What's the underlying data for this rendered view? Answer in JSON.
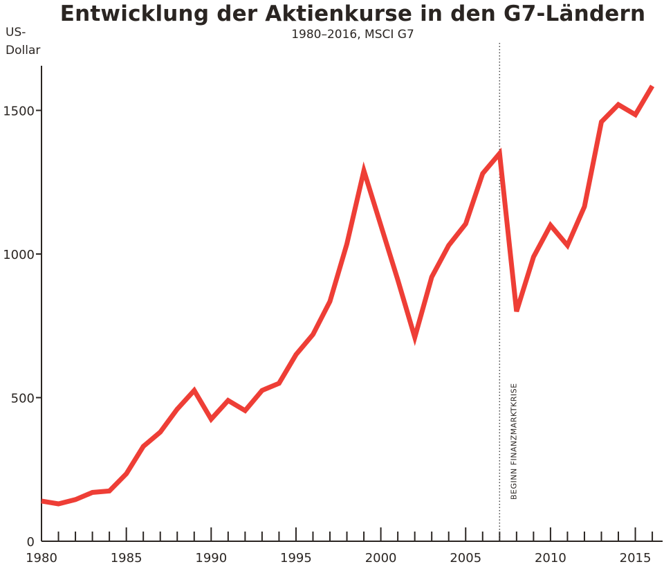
{
  "chart_data": {
    "type": "line",
    "title": "Entwicklung der Aktienkurse in den G7-Ländern",
    "subtitle": "1980–2016, MSCI G7",
    "ylabel": "US-\nDollar",
    "xlabel": "",
    "xlim": [
      1980,
      2016.6
    ],
    "ylim": [
      0,
      1660
    ],
    "x_ticks": [
      1980,
      1985,
      1990,
      1995,
      2000,
      2005,
      2010,
      2015
    ],
    "y_ticks": [
      0,
      500,
      1000,
      1500
    ],
    "grid": false,
    "legend": "none",
    "colors": {
      "line": "#ee3e36",
      "axis": "#2a2522",
      "marker": "#444444"
    },
    "series": [
      {
        "x": [
          1980,
          1981,
          1982,
          1983,
          1984,
          1985,
          1986,
          1987,
          1988,
          1989,
          1990,
          1991,
          1992,
          1993,
          1994,
          1995,
          1996,
          1997,
          1998,
          1999,
          2000,
          2001,
          2002,
          2003,
          2004,
          2005,
          2006,
          2007,
          2008,
          2009,
          2010,
          2011,
          2012,
          2013,
          2014,
          2015,
          2016
        ],
        "values": [
          140,
          130,
          145,
          170,
          175,
          235,
          330,
          380,
          460,
          525,
          425,
          490,
          455,
          525,
          550,
          650,
          720,
          835,
          1035,
          1290,
          1100,
          910,
          710,
          920,
          1030,
          1105,
          1280,
          1350,
          800,
          990,
          1100,
          1030,
          1165,
          1460,
          1520,
          1485,
          1585
        ]
      }
    ],
    "annotations": [
      {
        "x": 2007,
        "text": "BEGINN FINANZMARKTKRISE"
      }
    ]
  }
}
